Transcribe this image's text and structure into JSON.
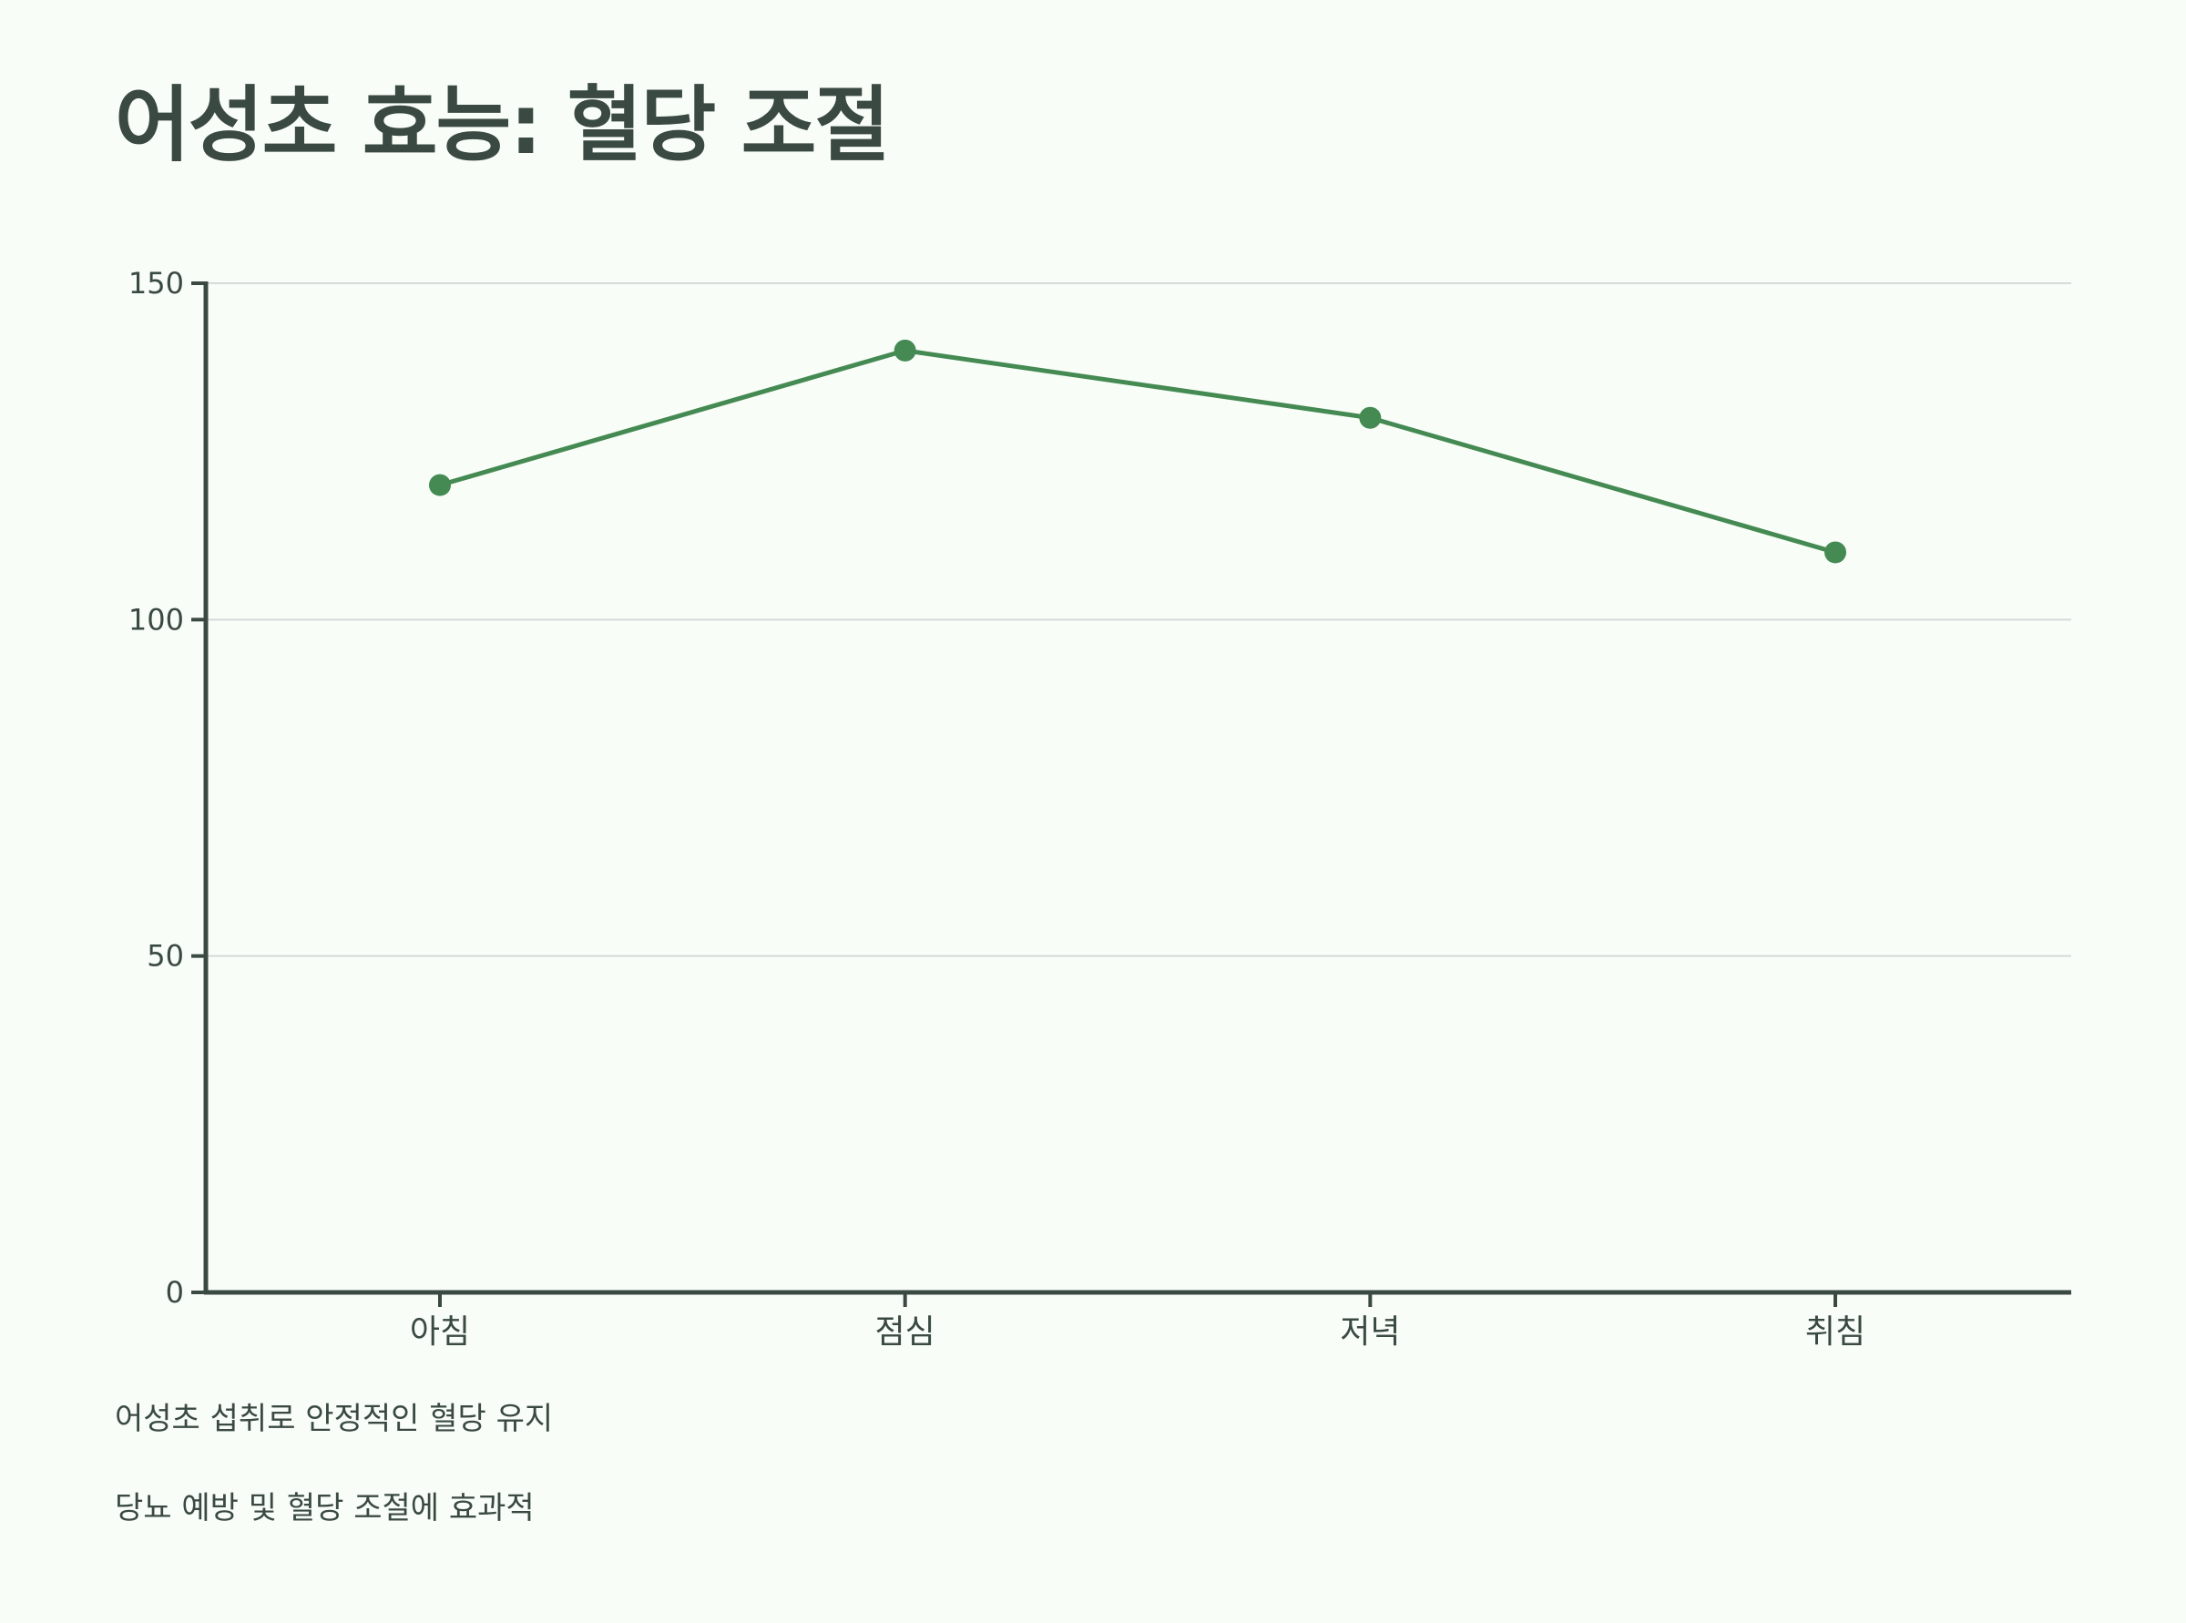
{
  "chart_data": {
    "type": "line",
    "title": "어성초 효능: 혈당 조절",
    "categories": [
      "아침",
      "점심",
      "저녁",
      "취침"
    ],
    "series": [
      {
        "values": [
          120,
          140,
          130,
          110
        ]
      }
    ],
    "ylim": [
      0,
      150
    ],
    "yticks": [
      0,
      50,
      100,
      150
    ],
    "grid": true,
    "colors": {
      "line": "#448a52",
      "axis": "#3a4a42",
      "grid": "#d6dad8",
      "text": "#3a4a42"
    }
  },
  "notes": [
    "어성초 섭취로 안정적인 혈당 유지",
    "당뇨 예방 및 혈당 조절에 효과적"
  ]
}
